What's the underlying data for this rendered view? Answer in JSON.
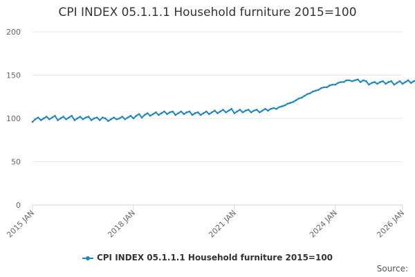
{
  "chart_data": {
    "type": "line",
    "title": "CPI INDEX 05.1.1.1 Household furniture 2015=100",
    "xlabel": "",
    "ylabel": "",
    "ylim": [
      0,
      200
    ],
    "yticks": [
      0,
      50,
      100,
      150,
      200
    ],
    "xlim": [
      "2015-01",
      "2026-01"
    ],
    "xticks": [
      {
        "date": "2015-01",
        "label": "2015 JAN"
      },
      {
        "date": "2018-01",
        "label": "2018 JAN"
      },
      {
        "date": "2021-01",
        "label": "2021 JAN"
      },
      {
        "date": "2024-01",
        "label": "2024 JAN"
      },
      {
        "date": "2026-01",
        "label": "2026 JAN"
      }
    ],
    "grid": "horizontal",
    "legend_position": "bottom-center",
    "series": [
      {
        "name": "CPI INDEX 05.1.1.1 Household furniture 2015=100",
        "color": "#1f86c0",
        "start": "2015-01",
        "frequency": "monthly",
        "values": [
          96,
          99,
          101,
          98,
          100,
          102,
          99,
          101,
          103,
          98,
          100,
          102,
          99,
          101,
          103,
          98,
          100,
          102,
          99,
          101,
          102,
          98,
          100,
          101,
          98,
          101,
          100,
          97,
          99,
          101,
          99,
          100,
          102,
          99,
          101,
          103,
          100,
          103,
          105,
          101,
          104,
          106,
          103,
          105,
          107,
          104,
          106,
          108,
          105,
          107,
          108,
          104,
          106,
          108,
          105,
          107,
          108,
          104,
          106,
          107,
          104,
          106,
          108,
          105,
          107,
          109,
          106,
          108,
          110,
          107,
          109,
          111,
          106,
          108,
          110,
          107,
          109,
          110,
          107,
          109,
          110,
          107,
          109,
          111,
          109,
          111,
          112,
          111,
          113,
          114,
          115,
          117,
          118,
          119,
          121,
          123,
          124,
          126,
          128,
          129,
          131,
          132,
          133,
          135,
          136,
          136,
          138,
          139,
          139,
          141,
          142,
          142,
          144,
          144,
          143,
          144,
          145,
          142,
          144,
          143,
          139,
          141,
          142,
          140,
          142,
          143,
          140,
          142,
          143,
          139,
          141,
          143,
          140,
          142,
          144,
          141,
          143,
          144,
          141,
          143,
          142,
          140,
          142,
          142,
          138
        ]
      }
    ]
  },
  "footer": {
    "source_label": "Source:"
  }
}
